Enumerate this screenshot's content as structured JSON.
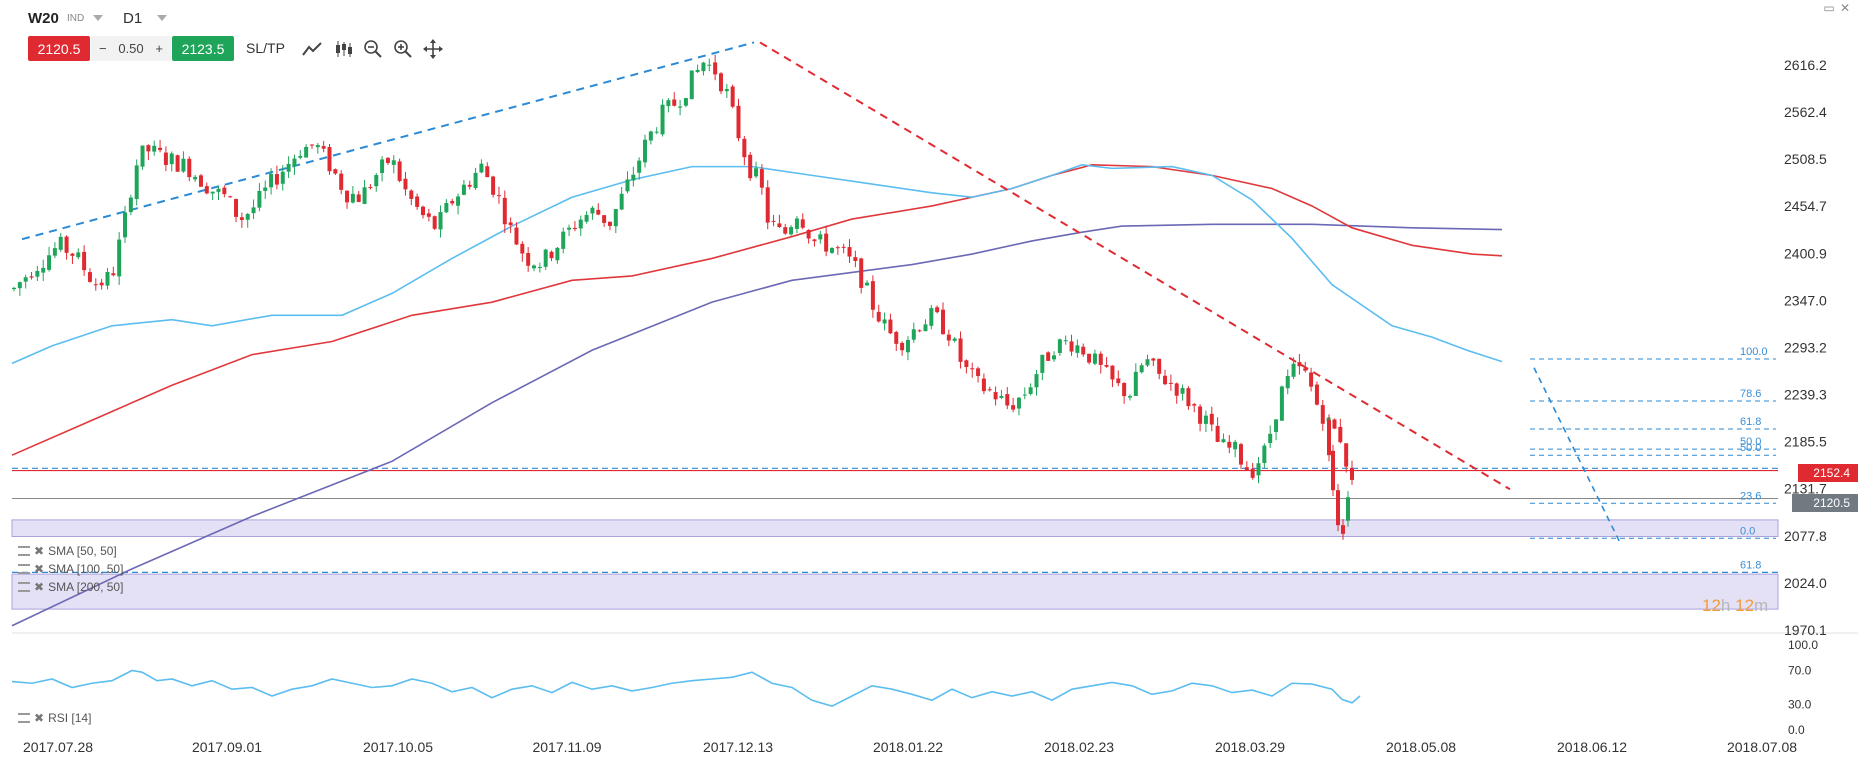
{
  "toolbar": {
    "symbol": "W20",
    "symbol_type": "IND",
    "timeframe": "D1",
    "sell_price": "2120.5",
    "lot_minus": "−",
    "lot": "0.50",
    "lot_plus": "+",
    "buy_price": "2123.5",
    "sltp": "SL/TP"
  },
  "price_axis": [
    "2616.2",
    "2562.4",
    "2508.5",
    "2454.7",
    "2400.9",
    "2347.0",
    "2293.2",
    "2239.3",
    "2185.5",
    "2131.7",
    "2077.8",
    "2024.0",
    "1970.1"
  ],
  "date_axis": [
    "2017.07.28",
    "2017.09.01",
    "2017.10.05",
    "2017.11.09",
    "2017.12.13",
    "2018.01.22",
    "2018.02.23",
    "2018.03.29",
    "2018.05.08",
    "2018.06.12",
    "2018.07.08"
  ],
  "price_tags": {
    "level_line": "2152.4",
    "current_price": "2120.5"
  },
  "fibonacci": [
    "100.0",
    "78.6",
    "61.8",
    "50.0",
    "50.0",
    "23.6",
    "0.0",
    "61.8"
  ],
  "indicators": {
    "sma50": "SMA [50, 50]",
    "sma100": "SMA [100, 50]",
    "sma200": "SMA [200, 50]",
    "rsi": "RSI [14]"
  },
  "rsi_axis": [
    "100.0",
    "70.0",
    "30.0",
    "0.0"
  ],
  "candle_timer": {
    "h": "12",
    "h_unit": "h",
    "m": "12",
    "m_unit": "m"
  },
  "colors": {
    "bull": "#1fa55a",
    "bear": "#e02a32",
    "sma50": "#5bbdf0",
    "sma100": "#e0383c",
    "sma200": "#6b69b5",
    "trend_up": "#2b8ad6",
    "trend_down": "#e02a32",
    "zone": "#e4e1f6"
  },
  "chart_data": {
    "type": "candlestick",
    "x_range": [
      "2017.07.28",
      "2018.07.08"
    ],
    "ylim": [
      1970.1,
      2643.1
    ],
    "sma50": [
      [
        0,
        2275
      ],
      [
        40,
        2295
      ],
      [
        100,
        2318
      ],
      [
        160,
        2325
      ],
      [
        200,
        2318
      ],
      [
        260,
        2330
      ],
      [
        330,
        2330
      ],
      [
        380,
        2355
      ],
      [
        440,
        2395
      ],
      [
        500,
        2432
      ],
      [
        560,
        2465
      ],
      [
        620,
        2485
      ],
      [
        680,
        2500
      ],
      [
        740,
        2500
      ],
      [
        800,
        2490
      ],
      [
        860,
        2480
      ],
      [
        920,
        2470
      ],
      [
        960,
        2465
      ],
      [
        1000,
        2475
      ],
      [
        1040,
        2490
      ],
      [
        1070,
        2502
      ],
      [
        1100,
        2498
      ],
      [
        1160,
        2500
      ],
      [
        1200,
        2490
      ],
      [
        1240,
        2462
      ],
      [
        1280,
        2418
      ],
      [
        1320,
        2365
      ],
      [
        1380,
        2318
      ],
      [
        1420,
        2305
      ],
      [
        1455,
        2290
      ],
      [
        1490,
        2277
      ]
    ],
    "sma100": [
      [
        0,
        2170
      ],
      [
        80,
        2210
      ],
      [
        160,
        2250
      ],
      [
        240,
        2285
      ],
      [
        320,
        2300
      ],
      [
        400,
        2330
      ],
      [
        480,
        2345
      ],
      [
        560,
        2370
      ],
      [
        620,
        2375
      ],
      [
        700,
        2395
      ],
      [
        780,
        2420
      ],
      [
        840,
        2440
      ],
      [
        920,
        2455
      ],
      [
        1000,
        2475
      ],
      [
        1040,
        2490
      ],
      [
        1080,
        2502
      ],
      [
        1140,
        2500
      ],
      [
        1200,
        2490
      ],
      [
        1260,
        2475
      ],
      [
        1300,
        2455
      ],
      [
        1340,
        2430
      ],
      [
        1400,
        2410
      ],
      [
        1460,
        2400
      ],
      [
        1490,
        2398
      ]
    ],
    "sma200": [
      [
        0,
        1975
      ],
      [
        120,
        2040
      ],
      [
        240,
        2100
      ],
      [
        380,
        2163
      ],
      [
        480,
        2230
      ],
      [
        580,
        2290
      ],
      [
        700,
        2345
      ],
      [
        780,
        2370
      ],
      [
        900,
        2388
      ],
      [
        960,
        2400
      ],
      [
        1020,
        2415
      ],
      [
        1070,
        2425
      ],
      [
        1110,
        2432
      ],
      [
        1200,
        2434
      ],
      [
        1300,
        2434
      ],
      [
        1400,
        2430
      ],
      [
        1490,
        2428
      ]
    ],
    "trend_up": [
      [
        10,
        2417
      ],
      [
        742,
        2642
      ]
    ],
    "trend_down": [
      [
        748,
        2642
      ],
      [
        1498,
        2131
      ]
    ],
    "horizontal_levels": [
      2152.4,
      2120.5
    ],
    "rsi": [
      [
        0,
        57
      ],
      [
        20,
        55
      ],
      [
        40,
        60
      ],
      [
        60,
        50
      ],
      [
        80,
        55
      ],
      [
        100,
        58
      ],
      [
        120,
        70
      ],
      [
        130,
        68
      ],
      [
        145,
        58
      ],
      [
        160,
        60
      ],
      [
        180,
        52
      ],
      [
        200,
        58
      ],
      [
        220,
        48
      ],
      [
        240,
        50
      ],
      [
        260,
        40
      ],
      [
        280,
        48
      ],
      [
        300,
        52
      ],
      [
        320,
        60
      ],
      [
        340,
        55
      ],
      [
        360,
        50
      ],
      [
        380,
        52
      ],
      [
        400,
        60
      ],
      [
        420,
        55
      ],
      [
        440,
        45
      ],
      [
        460,
        50
      ],
      [
        480,
        38
      ],
      [
        500,
        48
      ],
      [
        520,
        52
      ],
      [
        540,
        44
      ],
      [
        560,
        56
      ],
      [
        580,
        48
      ],
      [
        600,
        52
      ],
      [
        620,
        46
      ],
      [
        640,
        50
      ],
      [
        660,
        55
      ],
      [
        680,
        58
      ],
      [
        700,
        60
      ],
      [
        720,
        62
      ],
      [
        740,
        68
      ],
      [
        760,
        55
      ],
      [
        780,
        50
      ],
      [
        800,
        35
      ],
      [
        820,
        28
      ],
      [
        840,
        40
      ],
      [
        860,
        52
      ],
      [
        880,
        48
      ],
      [
        900,
        42
      ],
      [
        920,
        35
      ],
      [
        940,
        48
      ],
      [
        960,
        38
      ],
      [
        980,
        45
      ],
      [
        1000,
        40
      ],
      [
        1020,
        45
      ],
      [
        1040,
        35
      ],
      [
        1060,
        48
      ],
      [
        1080,
        52
      ],
      [
        1100,
        56
      ],
      [
        1120,
        52
      ],
      [
        1140,
        42
      ],
      [
        1160,
        46
      ],
      [
        1180,
        55
      ],
      [
        1200,
        52
      ],
      [
        1220,
        44
      ],
      [
        1240,
        47
      ],
      [
        1260,
        40
      ],
      [
        1280,
        55
      ],
      [
        1300,
        54
      ],
      [
        1320,
        48
      ],
      [
        1330,
        36
      ],
      [
        1340,
        32
      ],
      [
        1348,
        40
      ]
    ]
  }
}
